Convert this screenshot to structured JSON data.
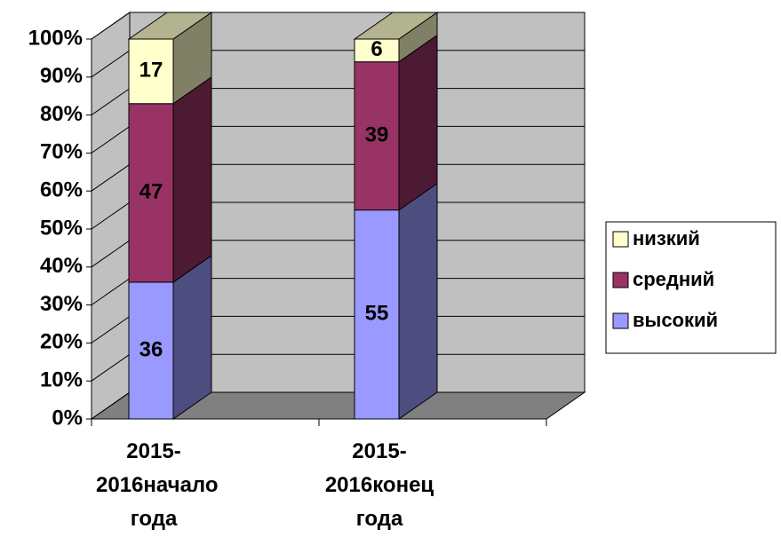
{
  "chart_data": {
    "type": "bar",
    "stacked": true,
    "categories": [
      "2015-2016начало года",
      "2015-2016конец года"
    ],
    "series": [
      {
        "name": "высокий",
        "color": "#9999ff",
        "values": [
          36,
          55
        ]
      },
      {
        "name": "средний",
        "color": "#993366",
        "values": [
          47,
          39
        ]
      },
      {
        "name": "низкий",
        "color": "#ffffcc",
        "values": [
          17,
          6
        ]
      }
    ],
    "ylim": [
      0,
      100
    ],
    "yticks": [
      {
        "value": 0,
        "label": "0%"
      },
      {
        "value": 10,
        "label": "10%"
      },
      {
        "value": 20,
        "label": "20%"
      },
      {
        "value": 30,
        "label": "30%"
      },
      {
        "value": 40,
        "label": "40%"
      },
      {
        "value": 50,
        "label": "50%"
      },
      {
        "value": 60,
        "label": "60%"
      },
      {
        "value": 70,
        "label": "70%"
      },
      {
        "value": 80,
        "label": "80%"
      },
      {
        "value": 90,
        "label": "90%"
      },
      {
        "value": 100,
        "label": "100%"
      }
    ],
    "grid": true,
    "legend": "right"
  }
}
